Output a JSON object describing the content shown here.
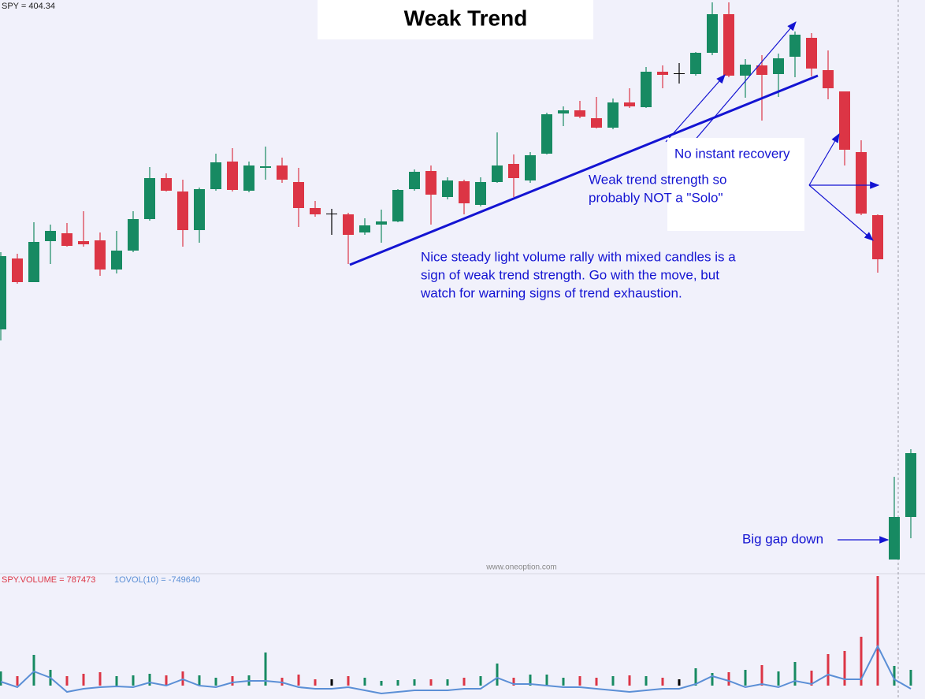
{
  "chart_data": {
    "type": "candlestick",
    "title": "Weak Trend",
    "price_label": "SPY = 404.34",
    "volume_label": "SPY.VOLUME = 787473",
    "volume_ma_label": "1OVOL(10) = -749640",
    "watermark": "www.oneoption.com",
    "annotations": {
      "recovery": "No instant recovery",
      "solo": [
        "Weak trend strength so",
        "probably NOT a \"Solo\""
      ],
      "rally": [
        "Nice steady light volume rally with mixed candles is a",
        "sign of weak trend strength. Go with the move, but",
        "watch for warning signs of trend exhaustion."
      ],
      "gap": "Big gap down"
    },
    "open": [
      302,
      392,
      362,
      414,
      424,
      414,
      415,
      378,
      402,
      442,
      494,
      477,
      428,
      480,
      515,
      478,
      507,
      510,
      489,
      456,
      449,
      448,
      425,
      435,
      439,
      480,
      503,
      470,
      490,
      460,
      489,
      512,
      491,
      525,
      576,
      580,
      570,
      558,
      590,
      584,
      629,
      627,
      626,
      653,
      702,
      624,
      637,
      626,
      648,
      672,
      631,
      604,
      527,
      447,
      10,
      64
    ],
    "high": [
      400,
      398,
      438,
      435,
      437,
      452,
      425,
      427,
      452,
      508,
      500,
      492,
      482,
      525,
      532,
      515,
      534,
      520,
      507,
      465,
      455,
      450,
      443,
      454,
      480,
      505,
      510,
      495,
      492,
      495,
      552,
      524,
      527,
      577,
      585,
      592,
      597,
      595,
      608,
      635,
      637,
      640,
      654,
      717,
      717,
      645,
      650,
      652,
      680,
      678,
      656,
      604,
      542,
      448,
      115,
      150
    ],
    "low": [
      288,
      360,
      362,
      385,
      407,
      407,
      370,
      373,
      400,
      440,
      477,
      407,
      412,
      478,
      477,
      476,
      492,
      488,
      432,
      445,
      422,
      385,
      422,
      412,
      438,
      478,
      435,
      467,
      448,
      458,
      488,
      470,
      488,
      524,
      560,
      570,
      557,
      556,
      583,
      583,
      608,
      614,
      624,
      650,
      622,
      596,
      567,
      597,
      622,
      623,
      594,
      510,
      447,
      374,
      10,
      37
    ],
    "close": [
      395,
      362,
      413,
      427,
      408,
      410,
      378,
      402,
      442,
      494,
      478,
      428,
      480,
      514,
      479,
      510,
      509,
      492,
      456,
      448,
      449,
      422,
      434,
      439,
      479,
      502,
      473,
      491,
      462,
      489,
      510,
      494,
      523,
      575,
      580,
      572,
      558,
      590,
      585,
      629,
      625,
      627,
      653,
      702,
      624,
      638,
      625,
      646,
      676,
      633,
      608,
      530,
      449,
      391,
      64,
      145
    ],
    "volume": [
      18,
      12,
      39,
      20,
      12,
      15,
      17,
      12,
      13,
      15,
      13,
      18,
      13,
      10,
      12,
      13,
      42,
      10,
      14,
      8,
      8,
      12,
      10,
      6,
      7,
      8,
      8,
      8,
      10,
      12,
      28,
      10,
      14,
      14,
      10,
      12,
      10,
      12,
      13,
      12,
      10,
      8,
      22,
      16,
      17,
      20,
      26,
      18,
      30,
      19,
      40,
      44,
      62,
      139,
      25,
      20
    ],
    "volume_ma": [
      5,
      -2,
      18,
      10,
      -8,
      -4,
      -2,
      -1,
      -2,
      4,
      0,
      8,
      0,
      -2,
      4,
      6,
      6,
      4,
      -2,
      -4,
      -4,
      -2,
      -6,
      -10,
      -8,
      -6,
      -6,
      -6,
      -4,
      -4,
      10,
      2,
      2,
      0,
      -2,
      -2,
      -4,
      -6,
      -8,
      -6,
      -4,
      -4,
      2,
      12,
      6,
      -2,
      2,
      -2,
      6,
      2,
      14,
      8,
      8,
      50,
      8,
      -4
    ],
    "ylim": [
      0,
      720
    ],
    "volume_ylim": [
      -17,
      140
    ],
    "up_color": "#178a62",
    "down_color": "#dc3545",
    "doji_color": "#000000",
    "volume_ma_color": "#5b8fd6"
  }
}
